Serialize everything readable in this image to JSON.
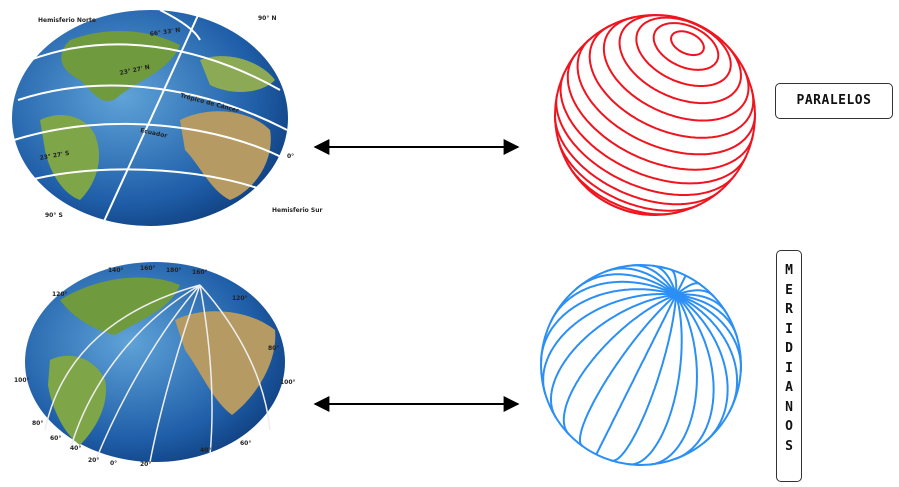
{
  "globe_top": {
    "labels": [
      "Hemisferio Norte",
      "90° N",
      "66° 33' N",
      "23° 27' N",
      "Trópico de Cáncer",
      "Ecuador",
      "0°",
      "23° 27' S",
      "90° S",
      "Hemisferio Sur"
    ]
  },
  "globe_bottom": {
    "labels": [
      "140°",
      "160°",
      "180°",
      "160°",
      "120°",
      "120°",
      "100°",
      "80°",
      "100°",
      "80°",
      "60°",
      "40°",
      "20°",
      "0°",
      "20°",
      "40°",
      "60°"
    ]
  },
  "parallels": {
    "label": "PARALELOS"
  },
  "meridians": {
    "label": "MERIDIANOS"
  }
}
